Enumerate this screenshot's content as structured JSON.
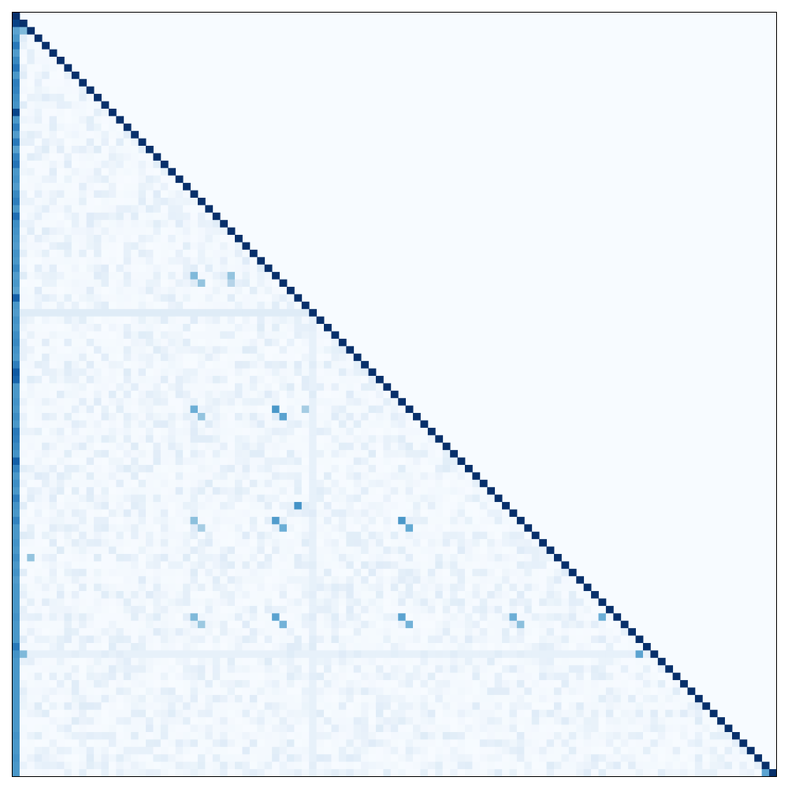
{
  "chart_data": {
    "type": "heatmap",
    "title": "",
    "xlabel": "",
    "ylabel": "",
    "axes_ticks": "none",
    "grid": false,
    "legend": "none",
    "matrix_shape": "lower-triangular",
    "size": 103,
    "value_range": [
      0,
      1
    ],
    "diagonal_value": 1.0,
    "upper_triangle_value": 0.0,
    "colormap": {
      "name": "Blues",
      "stops": [
        "#f7fbff",
        "#deebf7",
        "#c6dbef",
        "#9ecae1",
        "#6baed6",
        "#4292c6",
        "#2171b5",
        "#08519c",
        "#08306b"
      ]
    },
    "first_column_values": [
      1.0,
      0.93,
      0.55,
      0.6,
      0.72,
      0.58,
      0.66,
      0.74,
      0.6,
      0.7,
      0.68,
      0.64,
      0.62,
      0.92,
      0.6,
      0.7,
      0.58,
      0.72,
      0.56,
      0.68,
      0.74,
      0.6,
      0.62,
      0.58,
      0.66,
      0.7,
      0.6,
      0.76,
      0.64,
      0.62,
      0.6,
      0.58,
      0.62,
      0.6,
      0.66,
      0.58,
      0.6,
      0.56,
      0.82,
      0.6,
      0.58,
      0.62,
      0.6,
      0.64,
      0.66,
      0.62,
      0.6,
      0.7,
      0.84,
      0.8,
      0.6,
      0.6,
      0.62,
      0.6,
      0.64,
      0.6,
      0.72,
      0.7,
      0.66,
      0.62,
      0.82,
      0.68,
      0.6,
      0.64,
      0.6,
      0.7,
      0.62,
      0.6,
      0.68,
      0.6,
      0.6,
      0.62,
      0.6,
      0.64,
      0.6,
      0.62,
      0.58,
      0.6,
      0.6,
      0.6,
      0.6,
      0.62,
      0.6,
      0.6,
      0.6,
      0.72,
      0.62,
      0.6,
      0.6,
      0.6,
      0.6,
      0.6,
      0.6,
      0.6,
      0.6,
      0.6,
      0.6,
      0.62,
      0.6,
      0.6,
      0.62,
      0.6,
      0.6
    ],
    "highlighted_cells": [
      {
        "row": 2,
        "col": 1,
        "value": 0.45
      },
      {
        "row": 35,
        "col": 24,
        "value": 0.45
      },
      {
        "row": 36,
        "col": 25,
        "value": 0.4
      },
      {
        "row": 35,
        "col": 29,
        "value": 0.4
      },
      {
        "row": 36,
        "col": 29,
        "value": 0.3
      },
      {
        "row": 53,
        "col": 24,
        "value": 0.5
      },
      {
        "row": 54,
        "col": 25,
        "value": 0.4
      },
      {
        "row": 53,
        "col": 35,
        "value": 0.6
      },
      {
        "row": 54,
        "col": 36,
        "value": 0.55
      },
      {
        "row": 53,
        "col": 39,
        "value": 0.35
      },
      {
        "row": 66,
        "col": 38,
        "value": 0.62
      },
      {
        "row": 68,
        "col": 24,
        "value": 0.42
      },
      {
        "row": 69,
        "col": 25,
        "value": 0.35
      },
      {
        "row": 68,
        "col": 35,
        "value": 0.58
      },
      {
        "row": 69,
        "col": 36,
        "value": 0.5
      },
      {
        "row": 68,
        "col": 52,
        "value": 0.6
      },
      {
        "row": 69,
        "col": 53,
        "value": 0.52
      },
      {
        "row": 73,
        "col": 2,
        "value": 0.4
      },
      {
        "row": 81,
        "col": 24,
        "value": 0.45
      },
      {
        "row": 82,
        "col": 25,
        "value": 0.38
      },
      {
        "row": 81,
        "col": 35,
        "value": 0.55
      },
      {
        "row": 82,
        "col": 36,
        "value": 0.48
      },
      {
        "row": 81,
        "col": 52,
        "value": 0.55
      },
      {
        "row": 82,
        "col": 53,
        "value": 0.48
      },
      {
        "row": 81,
        "col": 67,
        "value": 0.5
      },
      {
        "row": 82,
        "col": 68,
        "value": 0.42
      },
      {
        "row": 81,
        "col": 79,
        "value": 0.5
      },
      {
        "row": 86,
        "col": 1,
        "value": 0.45
      },
      {
        "row": 86,
        "col": 84,
        "value": 0.55
      },
      {
        "row": 102,
        "col": 101,
        "value": 0.55
      }
    ],
    "light_row_bands": [
      {
        "row": 40,
        "value": 0.12
      },
      {
        "row": 86,
        "value": 0.08
      }
    ],
    "light_column_bands": [
      {
        "col": 40,
        "value": 0.08
      }
    ]
  }
}
